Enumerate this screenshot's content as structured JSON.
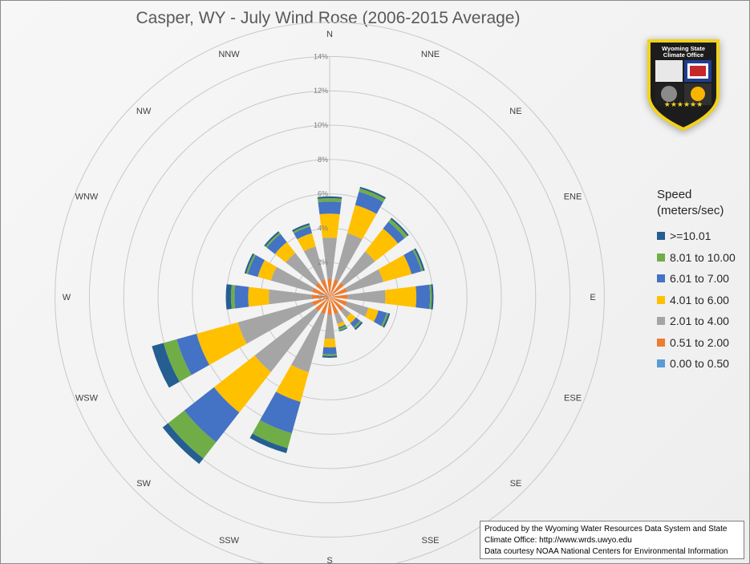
{
  "title": "Casper, WY - July Wind Rose (2006-2015 Average)",
  "chart_data": {
    "type": "wind-rose",
    "title": "Casper, WY - July Wind Rose (2006-2015 Average)",
    "directions": [
      "N",
      "NNE",
      "NE",
      "ENE",
      "E",
      "ESE",
      "SE",
      "SSE",
      "S",
      "SSW",
      "SW",
      "WSW",
      "W",
      "WNW",
      "NW",
      "NNW"
    ],
    "radial_axis": {
      "min": 0,
      "max": 14,
      "step": 2,
      "unit": "%",
      "tick_labels": [
        "0%",
        "2%",
        "4%",
        "6%",
        "8%",
        "10%",
        "12%",
        "14%"
      ]
    },
    "stacking": "cumulative",
    "series": [
      {
        "name": "0.00 to 0.50",
        "color": "#5b9bd5",
        "values": [
          0.05,
          0.05,
          0.05,
          0.05,
          0.05,
          0.05,
          0.05,
          0.05,
          0.05,
          0.05,
          0.05,
          0.05,
          0.05,
          0.05,
          0.05,
          0.05
        ]
      },
      {
        "name": "0.51 to 2.00",
        "color": "#ed7d31",
        "values": [
          1.0,
          1.0,
          1.0,
          1.0,
          1.0,
          1.0,
          1.0,
          1.0,
          1.0,
          1.0,
          1.0,
          1.0,
          1.0,
          1.0,
          1.0,
          1.0
        ]
      },
      {
        "name": "2.01 to 4.00",
        "color": "#a5a5a5",
        "values": [
          2.4,
          2.8,
          2.3,
          2.2,
          2.2,
          1.3,
          0.5,
          0.6,
          1.4,
          3.5,
          4.5,
          4.5,
          2.5,
          2.5,
          2.2,
          2.0
        ]
      },
      {
        "name": "4.01 to 6.00",
        "color": "#ffc000",
        "values": [
          1.4,
          1.7,
          1.7,
          1.7,
          1.8,
          0.6,
          0.4,
          0.2,
          0.5,
          1.8,
          3.0,
          2.5,
          1.2,
          0.8,
          0.8,
          0.8
        ]
      },
      {
        "name": "6.01 to 7.00",
        "color": "#4472c4",
        "values": [
          0.7,
          0.8,
          0.5,
          0.6,
          0.8,
          0.5,
          0.3,
          0.1,
          0.4,
          1.9,
          2.2,
          1.2,
          0.8,
          0.6,
          0.6,
          0.4
        ]
      },
      {
        "name": "8.01 to 10.00",
        "color": "#70ad47",
        "values": [
          0.2,
          0.2,
          0.2,
          0.1,
          0.1,
          0.1,
          0.1,
          0.1,
          0.1,
          0.9,
          1.2,
          0.8,
          0.2,
          0.1,
          0.1,
          0.1
        ]
      },
      {
        "name": ">=10.01",
        "color": "#255e91",
        "values": [
          0.1,
          0.1,
          0.1,
          0.1,
          0.1,
          0.1,
          0.1,
          0.05,
          0.1,
          0.3,
          0.4,
          0.7,
          0.3,
          0.1,
          0.1,
          0.1
        ]
      }
    ],
    "legend": {
      "title_line1": "Speed",
      "title_line2": "(meters/sec)",
      "placement": "right",
      "items": [
        {
          "label": ">=10.01",
          "color": "#255e91"
        },
        {
          "label": "8.01 to 10.00",
          "color": "#70ad47"
        },
        {
          "label": "6.01 to 7.00",
          "color": "#4472c4"
        },
        {
          "label": "4.01 to 6.00",
          "color": "#ffc000"
        },
        {
          "label": "2.01 to 4.00",
          "color": "#a5a5a5"
        },
        {
          "label": "0.51 to 2.00",
          "color": "#ed7d31"
        },
        {
          "label": "0.00 to 0.50",
          "color": "#5b9bd5"
        }
      ]
    }
  },
  "credit": {
    "line1": "Produced by the Wyoming Water Resources Data System and State",
    "line2": "Climate Office: http://www.wrds.uwyo.edu",
    "line3": "Data courtesy NOAA National Centers for Environmental Information"
  },
  "logo": {
    "name": "Wyoming State Climate Office",
    "line1": "Wyoming State",
    "line2": "Climate Office",
    "stars": "★★★★★★"
  }
}
